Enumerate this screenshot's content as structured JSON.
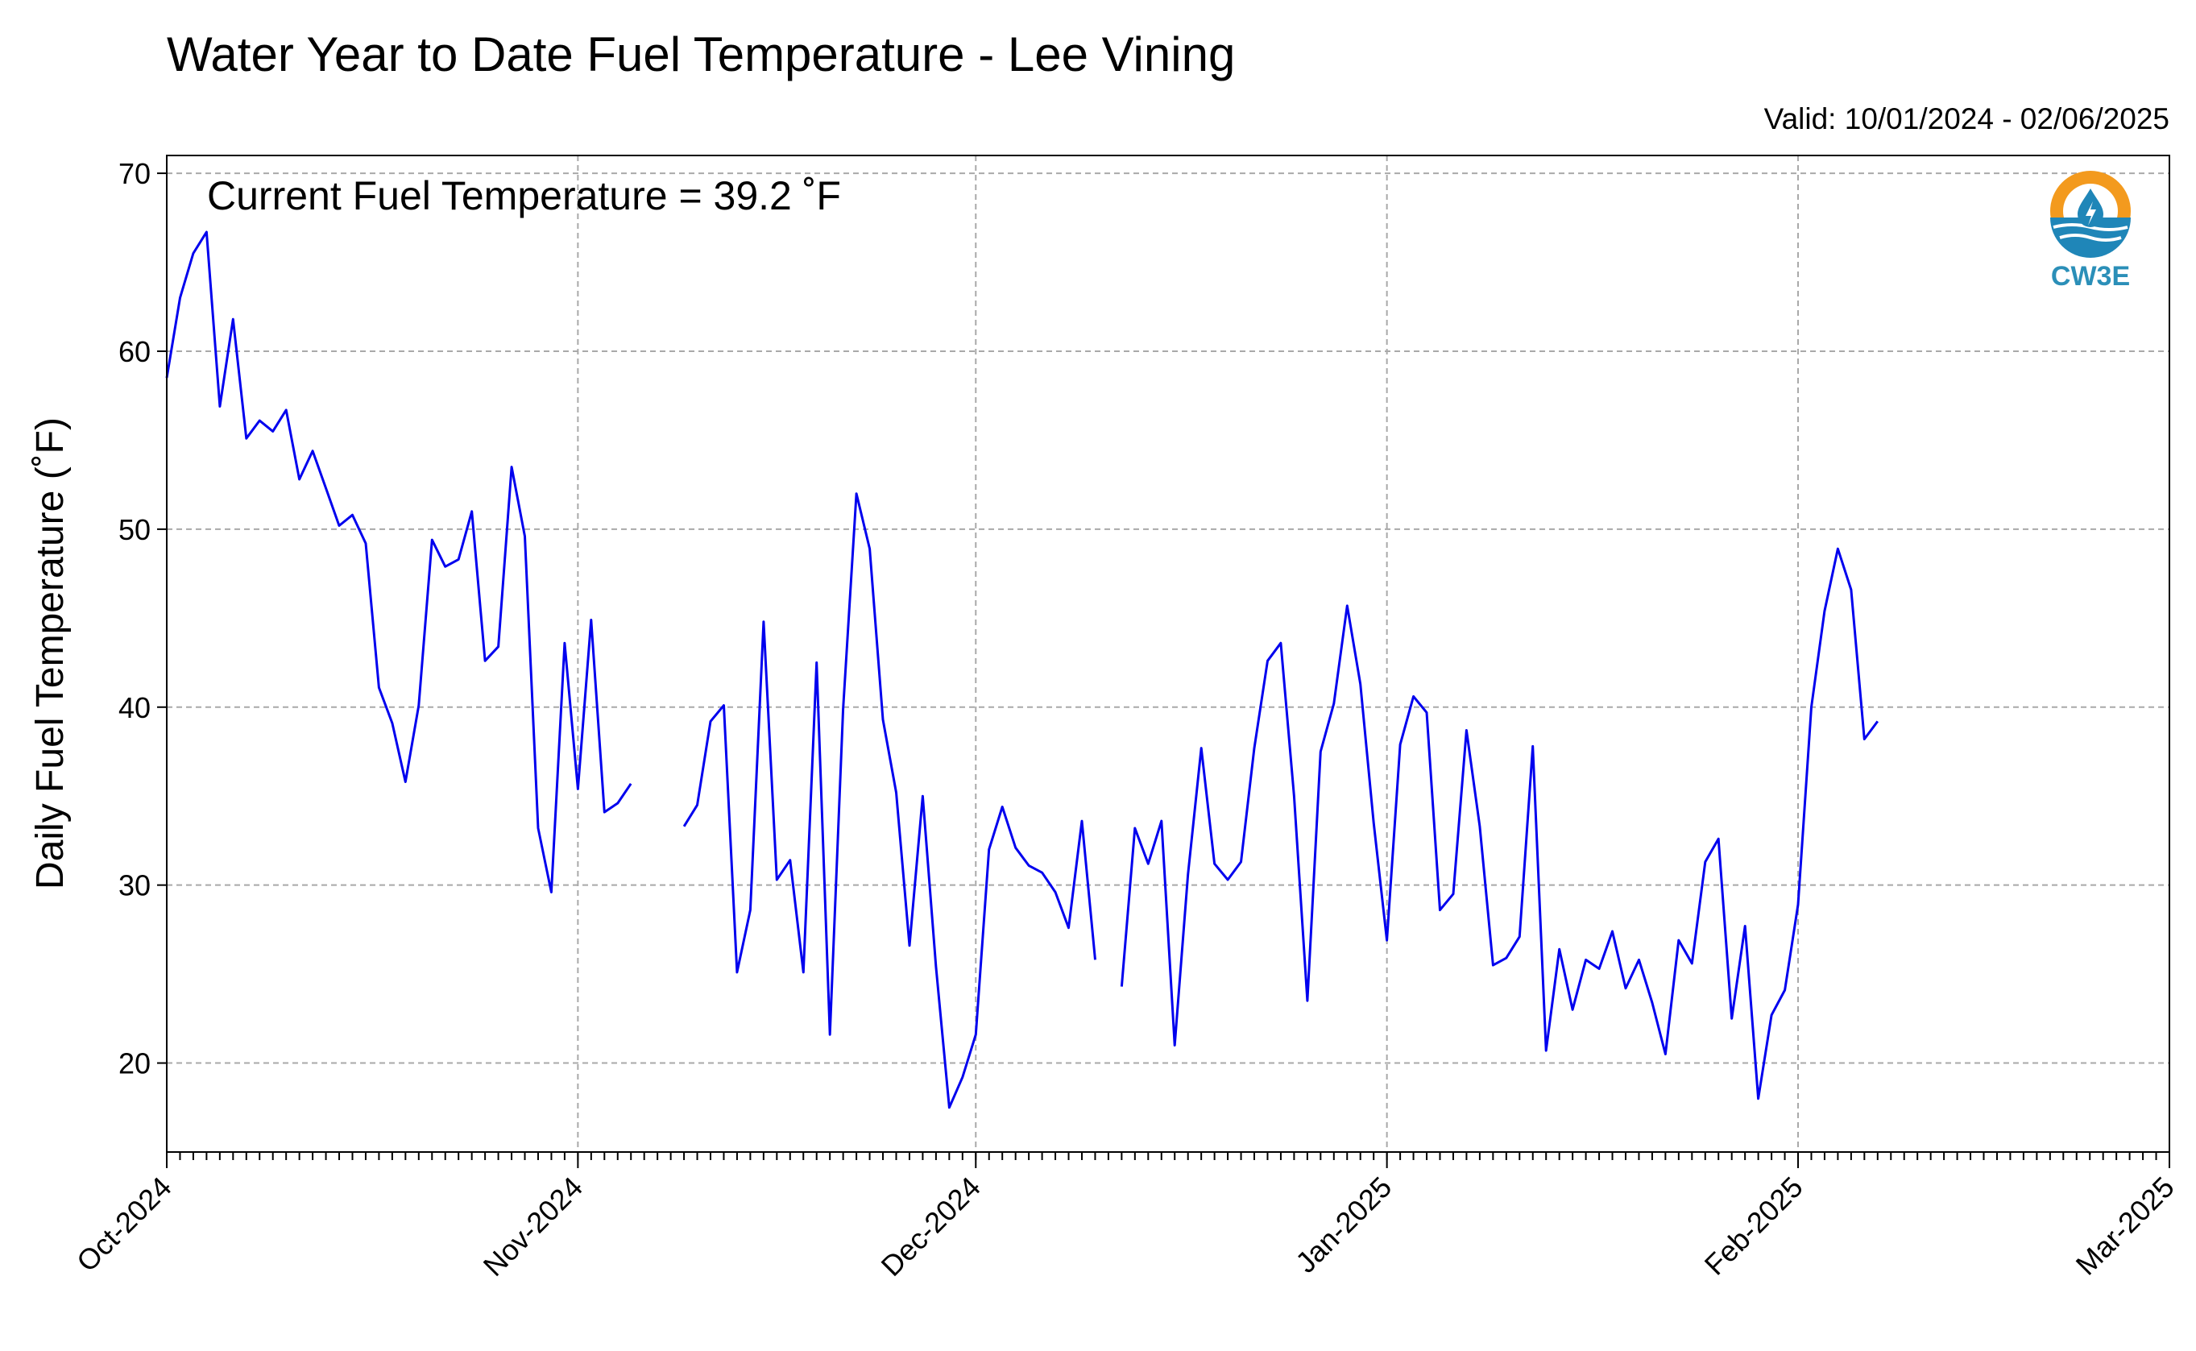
{
  "chart_data": {
    "type": "line",
    "title": "Water Year to Date Fuel Temperature - Lee Vining",
    "subtitle": "Valid: 10/01/2024 - 02/06/2025",
    "annotation": "Current Fuel Temperature = 39.2  ˚F",
    "ylabel": "Daily Fuel Temperature (˚F)",
    "xlabel": "",
    "ylim": [
      15,
      71
    ],
    "xlim": [
      "2024-10-01",
      "2025-03-01"
    ],
    "yticks": [
      20,
      30,
      40,
      50,
      60,
      70
    ],
    "xticks": [
      {
        "date": "2024-10-01",
        "label": "Oct-2024"
      },
      {
        "date": "2024-11-01",
        "label": "Nov-2024"
      },
      {
        "date": "2024-12-01",
        "label": "Dec-2024"
      },
      {
        "date": "2025-01-01",
        "label": "Jan-2025"
      },
      {
        "date": "2025-02-01",
        "label": "Feb-2025"
      },
      {
        "date": "2025-03-01",
        "label": "Mar-2025"
      }
    ],
    "grid": true,
    "line_color": "#0000ee",
    "series": [
      {
        "segments": [
          {
            "start": "2024-10-01",
            "values": [
              58.5,
              63,
              65.5,
              66.7,
              56.9,
              61.8,
              55.1,
              56.1,
              55.5,
              56.7,
              52.8,
              54.4,
              52.3,
              50.2,
              50.8,
              49.2,
              41.1,
              39.1,
              35.8,
              40.1,
              49.4,
              47.9,
              48.3,
              51.0,
              42.6,
              43.4,
              53.5,
              49.6,
              33.2,
              29.6,
              43.6,
              35.4,
              44.9,
              34.1,
              34.6,
              35.7
            ]
          },
          {
            "start": "2024-11-09",
            "values": [
              33.3,
              34.5,
              39.2,
              40.1,
              25.1,
              28.6,
              44.8,
              30.3,
              31.4,
              25.1,
              42.5,
              21.6,
              39.9,
              52.0,
              48.9,
              39.3,
              35.2,
              26.6,
              35.0,
              25.4,
              17.5,
              19.2,
              21.6,
              32.0,
              34.4,
              32.1,
              31.1,
              30.7,
              29.6,
              27.6,
              33.6,
              25.8
            ]
          },
          {
            "start": "2024-12-12",
            "values": [
              24.3,
              33.2,
              31.2,
              33.6,
              21.0,
              30.6,
              37.7,
              31.2,
              30.3,
              31.3,
              37.7,
              42.6,
              43.6,
              35.0,
              23.5,
              37.5,
              40.2,
              45.7,
              41.3,
              33.5,
              26.9,
              37.9,
              40.6,
              39.7,
              28.6,
              29.5,
              38.7,
              33.3,
              25.5,
              25.9,
              27.1,
              37.8,
              20.7,
              26.4,
              23.0,
              25.8,
              25.3,
              27.4,
              24.2,
              25.8,
              23.4,
              20.5,
              26.9,
              25.6,
              31.3,
              32.6,
              22.5,
              27.7,
              18.0,
              22.7,
              24.1,
              28.9,
              40.0,
              45.4,
              48.9,
              46.6,
              38.2,
              39.2
            ]
          }
        ]
      }
    ]
  },
  "logo": {
    "text": "CW3E",
    "ring_color": "#f39a1e",
    "wave_color": "#1f86b8",
    "drop_color": "#1f86b8"
  }
}
